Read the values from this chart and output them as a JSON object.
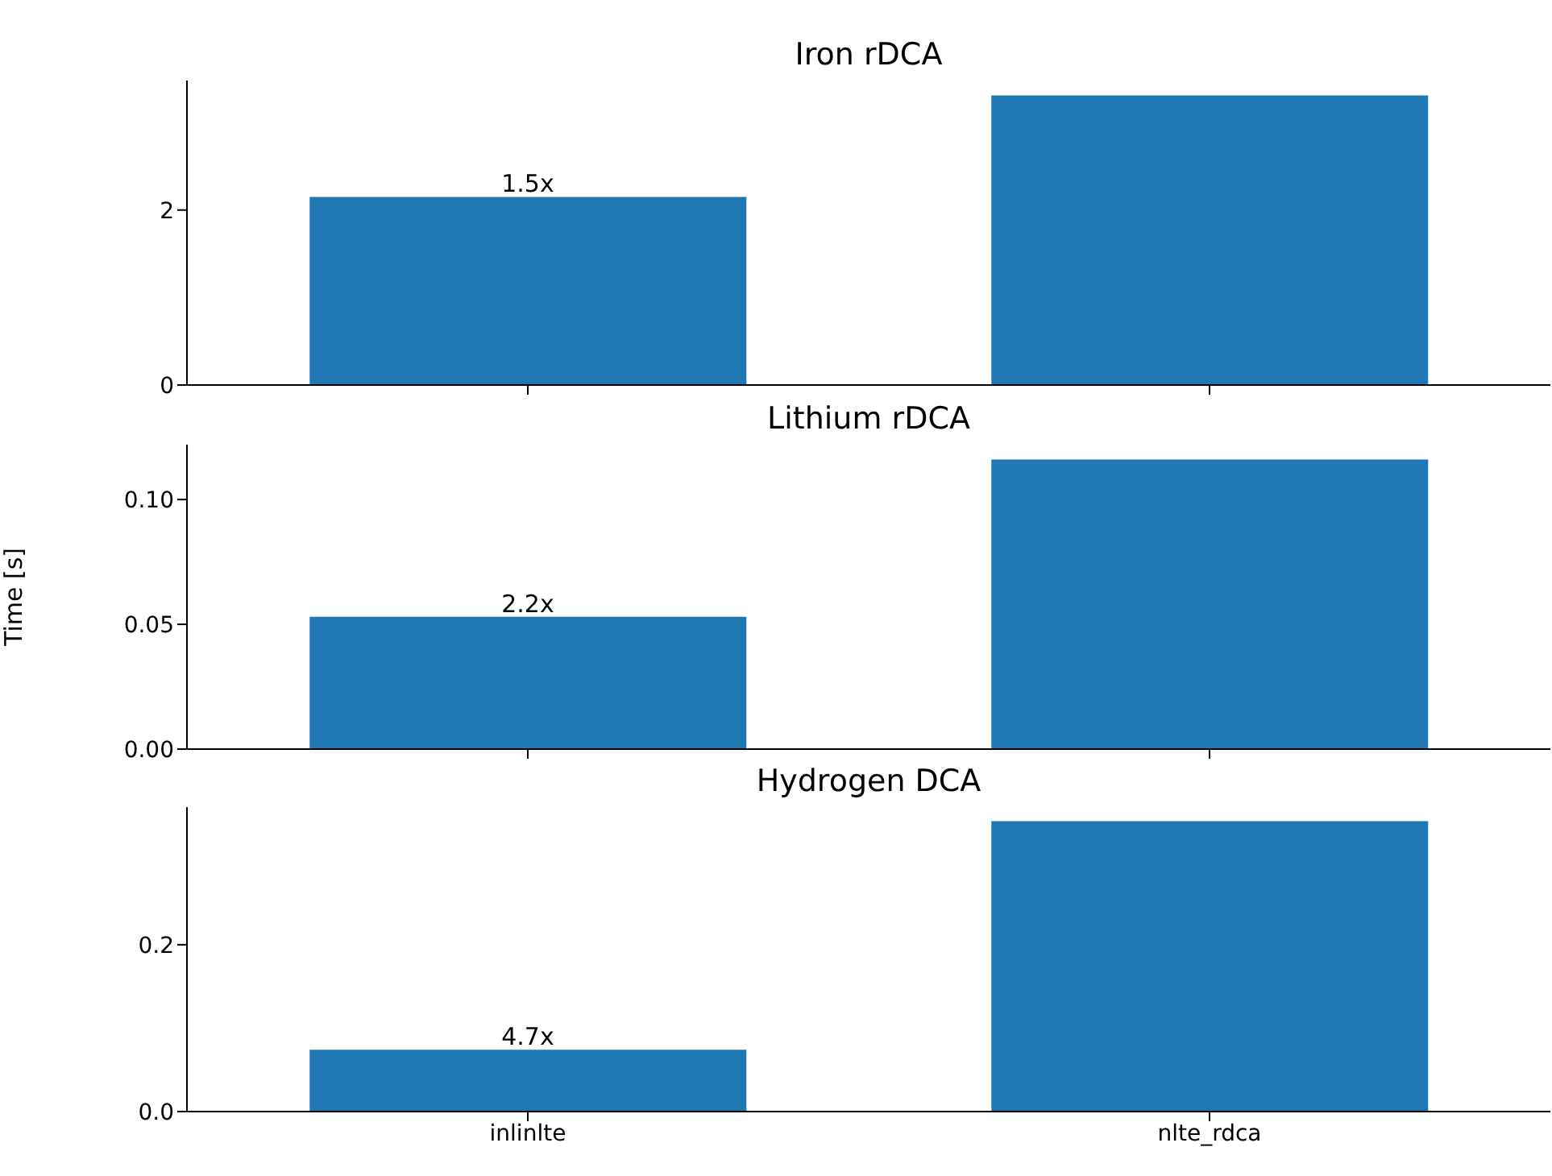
{
  "chart_data": [
    {
      "type": "bar",
      "title": "Iron rDCA",
      "categories": [
        "inlinlte",
        "nlte_rdca"
      ],
      "values": [
        2.15,
        3.31
      ],
      "color": "#1f77b4",
      "ylim": [
        0,
        3.48
      ],
      "yticks": [
        0,
        2
      ],
      "tick_labels": "y",
      "annotations": [
        {
          "text": "1.5x",
          "x": "inlinlte",
          "y": 2.15
        }
      ]
    },
    {
      "type": "bar",
      "title": "Lithium rDCA",
      "ylabel": "Time [s]",
      "categories": [
        "inlinlte",
        "nlte_rdca"
      ],
      "values": [
        0.053,
        0.116
      ],
      "color": "#1f77b4",
      "ylim": [
        0,
        0.122
      ],
      "yticks": [
        {
          "value": 0,
          "label": "0.00"
        },
        {
          "value": 0.05,
          "label": "0.05"
        },
        {
          "value": 0.1,
          "label": "0.10"
        }
      ],
      "tick_labels": "y",
      "annotations": [
        {
          "text": "2.2x",
          "x": "inlinlte",
          "y": 0.053
        }
      ]
    },
    {
      "type": "bar",
      "title": "Hydrogen DCA",
      "categories": [
        "inlinlte",
        "nlte_rdca"
      ],
      "values": [
        0.074,
        0.348
      ],
      "color": "#1f77b4",
      "ylim": [
        0,
        0.365
      ],
      "yticks": [
        {
          "value": 0,
          "label": "0.0"
        },
        {
          "value": 0.2,
          "label": "0.2"
        }
      ],
      "annotations": [
        {
          "text": "4.7x",
          "x": "inlinlte",
          "y": 0.074
        }
      ]
    }
  ]
}
